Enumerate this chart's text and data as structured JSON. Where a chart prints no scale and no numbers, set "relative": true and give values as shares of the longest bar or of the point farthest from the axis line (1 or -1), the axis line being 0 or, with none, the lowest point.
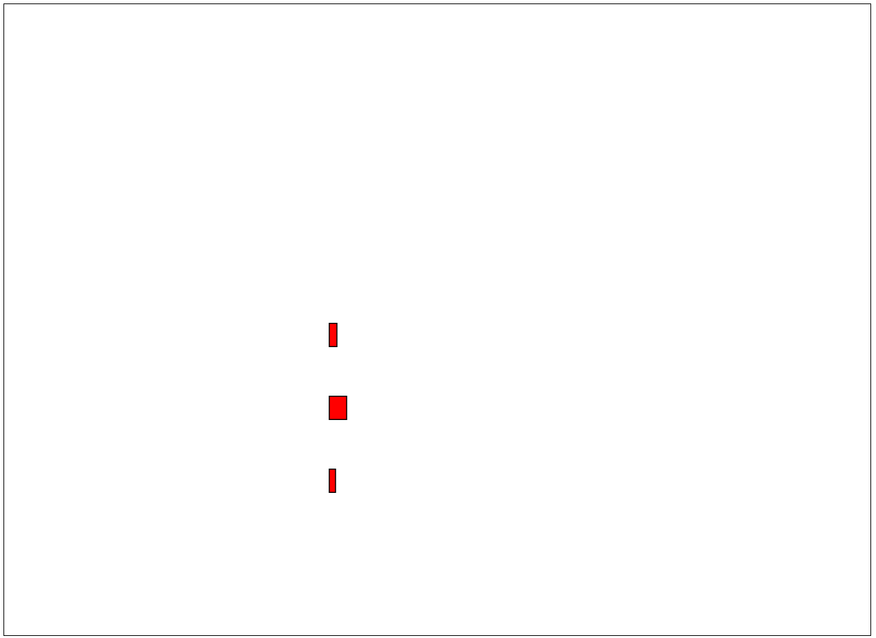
{
  "chart_data": {
    "type": "bar",
    "orientation": "horizontal",
    "relative": true,
    "categories": [
      null,
      null,
      null
    ],
    "values": [
      0.44,
      1,
      0.36
    ],
    "color": "#ff0000"
  }
}
